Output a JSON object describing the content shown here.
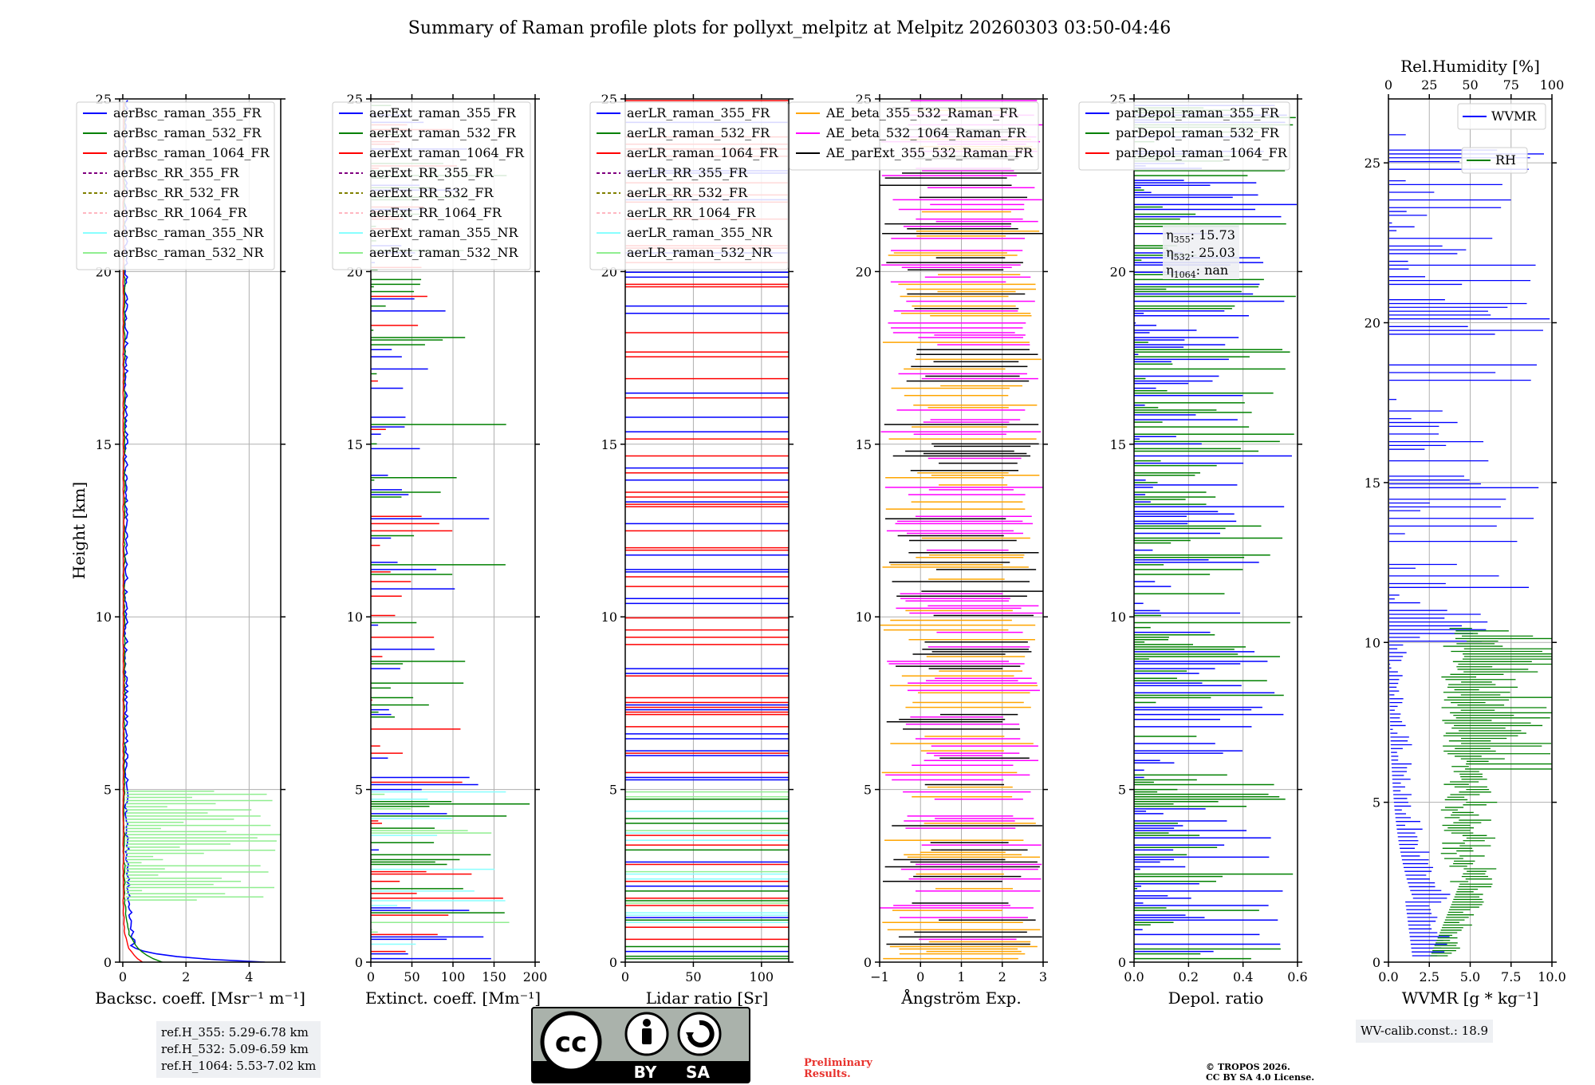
{
  "title": "Summary of Raman profile plots for pollyxt_melpitz at Melpitz 20260303 03:50-04:46",
  "chart_data": [
    {
      "type": "line",
      "xlabel": "Backsc. coeff. [Msr⁻¹ m⁻¹]",
      "ylabel": "Height [km]",
      "xlim": [
        -0.1,
        5
      ],
      "ylim": [
        0,
        25
      ],
      "xticks": [
        "0",
        "2",
        "4"
      ],
      "yticks": [
        "0",
        "5",
        "10",
        "15",
        "20",
        "25"
      ],
      "legend": "top-left",
      "series": [
        {
          "name": "aerBsc_raman_355_FR",
          "color": "#0000ff",
          "style": "solid"
        },
        {
          "name": "aerBsc_raman_532_FR",
          "color": "#008000",
          "style": "solid"
        },
        {
          "name": "aerBsc_raman_1064_FR",
          "color": "#ff0000",
          "style": "solid"
        },
        {
          "name": "aerBsc_RR_355_FR",
          "color": "#800080",
          "style": "dashed"
        },
        {
          "name": "aerBsc_RR_532_FR",
          "color": "#808000",
          "style": "dashed"
        },
        {
          "name": "aerBsc_RR_1064_FR",
          "color": "#ffb6c1",
          "style": "dashed"
        },
        {
          "name": "aerBsc_raman_355_NR",
          "color": "#88ffff",
          "style": "solid"
        },
        {
          "name": "aerBsc_raman_532_NR",
          "color": "#90ee90",
          "style": "solid"
        }
      ],
      "info": [
        "ref.H_355: 5.29-6.78 km",
        "ref.H_532: 5.09-6.59 km",
        "ref.H_1064: 5.53-7.02 km"
      ]
    },
    {
      "type": "line",
      "xlabel": "Extinct. coeff. [Mm⁻¹]",
      "xlim": [
        0,
        200
      ],
      "ylim": [
        0,
        25
      ],
      "xticks": [
        "0",
        "50",
        "100",
        "150",
        "200"
      ],
      "yticks": [
        "0",
        "5",
        "10",
        "15",
        "20",
        "25"
      ],
      "legend": "top-left",
      "series": [
        {
          "name": "aerExt_raman_355_FR",
          "color": "#0000ff",
          "style": "solid"
        },
        {
          "name": "aerExt_raman_532_FR",
          "color": "#008000",
          "style": "solid"
        },
        {
          "name": "aerExt_raman_1064_FR",
          "color": "#ff0000",
          "style": "solid"
        },
        {
          "name": "aerExt_RR_355_FR",
          "color": "#800080",
          "style": "dashed"
        },
        {
          "name": "aerExt_RR_532_FR",
          "color": "#808000",
          "style": "dashed"
        },
        {
          "name": "aerExt_RR_1064_FR",
          "color": "#ffb6c1",
          "style": "dashed"
        },
        {
          "name": "aerExt_raman_355_NR",
          "color": "#88ffff",
          "style": "solid"
        },
        {
          "name": "aerExt_raman_532_NR",
          "color": "#90ee90",
          "style": "solid"
        }
      ]
    },
    {
      "type": "line",
      "xlabel": "Lidar ratio [Sr]",
      "xlim": [
        0,
        120
      ],
      "ylim": [
        0,
        25
      ],
      "xticks": [
        "0",
        "50",
        "100"
      ],
      "yticks": [
        "0",
        "5",
        "10",
        "15",
        "20",
        "25"
      ],
      "legend": "top-left",
      "series": [
        {
          "name": "aerLR_raman_355_FR",
          "color": "#0000ff",
          "style": "solid"
        },
        {
          "name": "aerLR_raman_532_FR",
          "color": "#008000",
          "style": "solid"
        },
        {
          "name": "aerLR_raman_1064_FR",
          "color": "#ff0000",
          "style": "solid"
        },
        {
          "name": "aerLR_RR_355_FR",
          "color": "#800080",
          "style": "dashed"
        },
        {
          "name": "aerLR_RR_532_FR",
          "color": "#808000",
          "style": "dashed"
        },
        {
          "name": "aerLR_RR_1064_FR",
          "color": "#ffb6c1",
          "style": "dashed"
        },
        {
          "name": "aerLR_raman_355_NR",
          "color": "#88ffff",
          "style": "solid"
        },
        {
          "name": "aerLR_raman_532_NR",
          "color": "#90ee90",
          "style": "solid"
        }
      ]
    },
    {
      "type": "line",
      "xlabel": "Ångström Exp.",
      "xlim": [
        -1,
        3
      ],
      "ylim": [
        0,
        25
      ],
      "xticks": [
        "−1",
        "0",
        "1",
        "2",
        "3"
      ],
      "yticks": [
        "0",
        "5",
        "10",
        "15",
        "20",
        "25"
      ],
      "legend": "top-left",
      "series": [
        {
          "name": "AE_beta_355_532_Raman_FR",
          "color": "#ffa500",
          "style": "solid"
        },
        {
          "name": "AE_beta_532_1064_Raman_FR",
          "color": "#ff00ff",
          "style": "solid"
        },
        {
          "name": "AE_parExt_355_532_Raman_FR",
          "color": "#000000",
          "style": "solid"
        }
      ]
    },
    {
      "type": "line",
      "xlabel": "Depol. ratio",
      "xlim": [
        0,
        0.6
      ],
      "ylim": [
        0,
        25
      ],
      "xticks": [
        "0.0",
        "0.2",
        "0.4",
        "0.6"
      ],
      "yticks": [
        "0",
        "5",
        "10",
        "15",
        "20",
        "25"
      ],
      "legend": "top-left",
      "series": [
        {
          "name": "parDepol_raman_355_FR",
          "color": "#0000ff",
          "style": "solid"
        },
        {
          "name": "parDepol_raman_532_FR",
          "color": "#008000",
          "style": "solid"
        },
        {
          "name": "parDepol_raman_1064_FR",
          "color": "#ff0000",
          "style": "solid"
        }
      ],
      "annotations": [
        {
          "symbol": "η",
          "sub": "355",
          "text": ": 15.73"
        },
        {
          "symbol": "η",
          "sub": "532",
          "text": ": 25.03"
        },
        {
          "symbol": "η",
          "sub": "1064",
          "text": ": nan"
        }
      ]
    },
    {
      "type": "line",
      "xlabel": "WVMR [g * kg⁻¹]",
      "top_xlabel": "Rel.Humidity [%]",
      "xlim": [
        0,
        10
      ],
      "top_xlim": [
        0,
        100
      ],
      "ylim": [
        0,
        27
      ],
      "xticks": [
        "0.0",
        "2.5",
        "5.0",
        "7.5",
        "10.0"
      ],
      "top_xticks": [
        "0",
        "25",
        "50",
        "75",
        "100"
      ],
      "yticks": [
        "0",
        "5",
        "10",
        "15",
        "20",
        "25"
      ],
      "legend": "top-right",
      "series": [
        {
          "name": "WVMR",
          "color": "#0000ff",
          "style": "solid"
        },
        {
          "name": "RH",
          "color": "#008000",
          "style": "solid"
        }
      ],
      "info": [
        "WV-calib.const.: 18.9"
      ]
    }
  ],
  "license": {
    "cc": "cc",
    "by": "BY",
    "sa": "SA"
  },
  "notes": {
    "preliminary": [
      "Preliminary",
      "Results."
    ],
    "copyright": [
      "© TROPOS 2026.",
      "CC BY SA 4.0 License."
    ]
  }
}
